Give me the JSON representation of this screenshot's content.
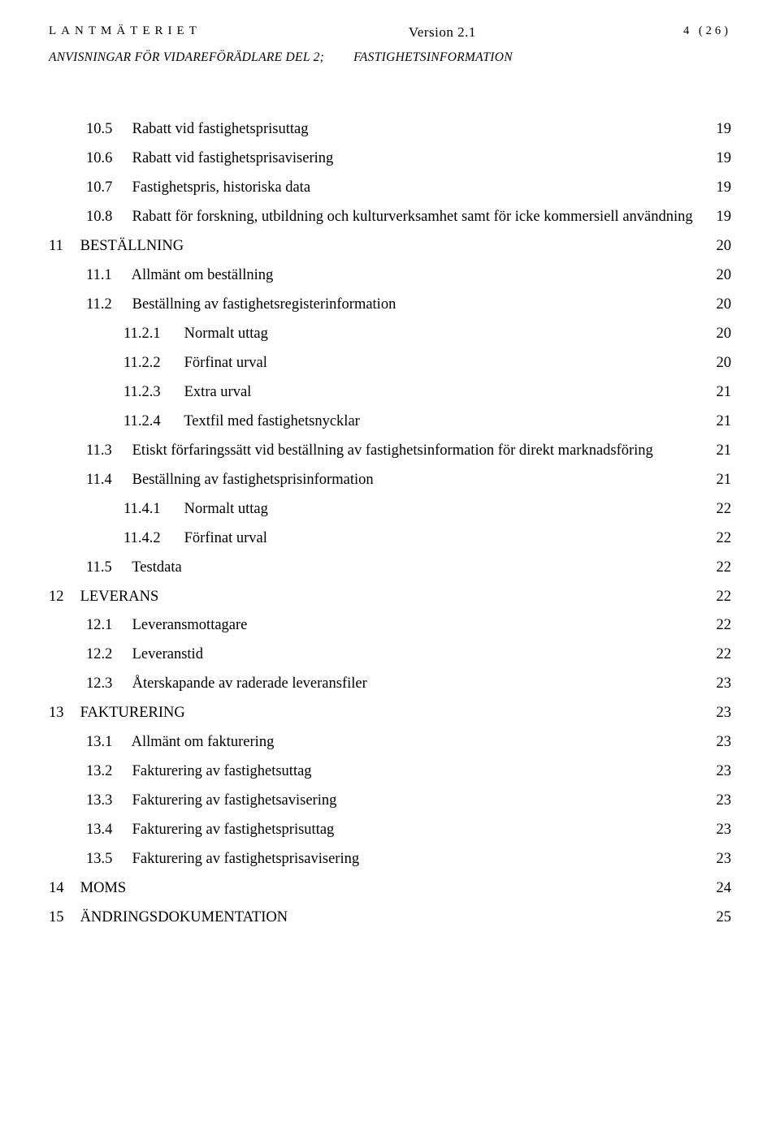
{
  "header": {
    "org": "LANTMÄTERIET",
    "version": "Version 2.1",
    "page_label": "4 (26)"
  },
  "subheader": {
    "left": "ANVISNINGAR FÖR VIDAREFÖRÄDLARE DEL 2;",
    "right": "FASTIGHETSINFORMATION"
  },
  "toc": [
    {
      "level": 2,
      "num": "10.5",
      "title": "Rabatt vid fastighetsprisuttag",
      "page": "19"
    },
    {
      "level": 2,
      "num": "10.6",
      "title": "Rabatt vid fastighetsprisavisering",
      "page": "19"
    },
    {
      "level": 2,
      "num": "10.7",
      "title": "Fastighetspris, historiska data",
      "page": "19"
    },
    {
      "level": 2,
      "num": "10.8",
      "title": "Rabatt för forskning, utbildning och kulturverksamhet samt för icke kommersiell användning",
      "page": "19"
    },
    {
      "level": 1,
      "num": "11",
      "title": "BESTÄLLNING",
      "page": "20"
    },
    {
      "level": 2,
      "num": "11.1",
      "title": "Allmänt om beställning",
      "page": "20"
    },
    {
      "level": 2,
      "num": "11.2",
      "title": "Beställning av fastighetsregisterinformation",
      "page": "20"
    },
    {
      "level": 3,
      "num": "11.2.1",
      "title": "Normalt uttag",
      "page": "20"
    },
    {
      "level": 3,
      "num": "11.2.2",
      "title": "Förfinat urval",
      "page": "20"
    },
    {
      "level": 3,
      "num": "11.2.3",
      "title": "Extra urval",
      "page": "21"
    },
    {
      "level": 3,
      "num": "11.2.4",
      "title": "Textfil med fastighetsnycklar",
      "page": "21"
    },
    {
      "level": 2,
      "num": "11.3",
      "title": "Etiskt förfaringssätt vid beställning av fastighetsinformation för direkt marknadsföring",
      "page": "21"
    },
    {
      "level": 2,
      "num": "11.4",
      "title": "Beställning av fastighetsprisinformation",
      "page": "21"
    },
    {
      "level": 3,
      "num": "11.4.1",
      "title": "Normalt uttag",
      "page": "22"
    },
    {
      "level": 3,
      "num": "11.4.2",
      "title": "Förfinat urval",
      "page": "22"
    },
    {
      "level": 2,
      "num": "11.5",
      "title": "Testdata",
      "page": "22"
    },
    {
      "level": 1,
      "num": "12",
      "title": "LEVERANS",
      "page": "22"
    },
    {
      "level": 2,
      "num": "12.1",
      "title": "Leveransmottagare",
      "page": "22"
    },
    {
      "level": 2,
      "num": "12.2",
      "title": "Leveranstid",
      "page": "22"
    },
    {
      "level": 2,
      "num": "12.3",
      "title": "Återskapande av raderade leveransfiler",
      "page": "23"
    },
    {
      "level": 1,
      "num": "13",
      "title": "FAKTURERING",
      "page": "23"
    },
    {
      "level": 2,
      "num": "13.1",
      "title": "Allmänt om fakturering",
      "page": "23"
    },
    {
      "level": 2,
      "num": "13.2",
      "title": "Fakturering av fastighetsuttag",
      "page": "23"
    },
    {
      "level": 2,
      "num": "13.3",
      "title": "Fakturering av fastighetsavisering",
      "page": "23"
    },
    {
      "level": 2,
      "num": "13.4",
      "title": "Fakturering av fastighetsprisuttag",
      "page": "23"
    },
    {
      "level": 2,
      "num": "13.5",
      "title": "Fakturering av fastighetsprisavisering",
      "page": "23"
    },
    {
      "level": 1,
      "num": "14",
      "title": "MOMS",
      "page": "24"
    },
    {
      "level": 1,
      "num": "15",
      "title": "ÄNDRINGSDOKUMENTATION",
      "page": "25"
    }
  ]
}
